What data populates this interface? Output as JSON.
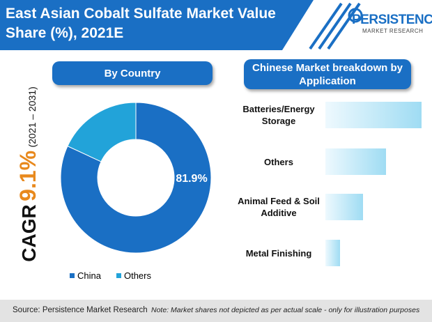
{
  "title": "East Asian Cobalt Sulfate Market Value Share (%), 2021E",
  "logo": {
    "name": "PERSISTENCE",
    "tagline": "MARKET RESEARCH"
  },
  "cagr": {
    "label": "CAGR",
    "value": "9.1%",
    "period": "(2021 – 2031)"
  },
  "chart_data": [
    {
      "type": "donut",
      "title": "By Country",
      "categories": [
        "China",
        "Others"
      ],
      "values": [
        81.9,
        18.1
      ],
      "value_labels": [
        "81.9%",
        null
      ],
      "colors": [
        "#1a6fc4",
        "#22a3d9"
      ]
    },
    {
      "type": "bar",
      "orientation": "horizontal",
      "title": "Chinese Market breakdown by Application",
      "categories": [
        "Batteries/Energy Storage",
        "Others",
        "Animal Feed & Soil Additive",
        "Metal Finishing"
      ],
      "values": [
        46,
        29,
        18,
        7
      ],
      "color": "#9fdcf3"
    }
  ],
  "footer": {
    "source": "Source: Persistence Market Research",
    "note": "Note: Market shares not depicted as per actual scale - only for illustration purposes"
  }
}
